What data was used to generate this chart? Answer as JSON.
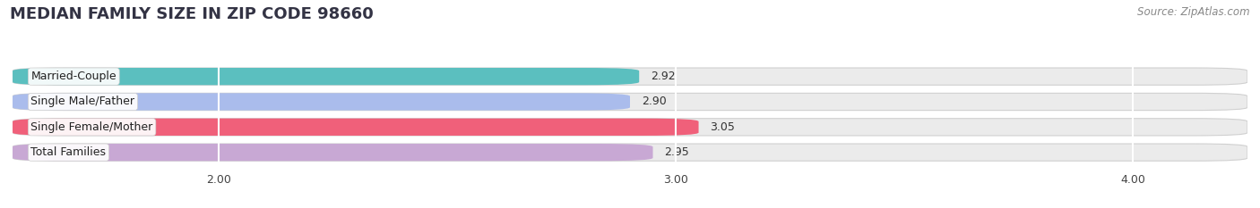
{
  "title": "MEDIAN FAMILY SIZE IN ZIP CODE 98660",
  "source": "Source: ZipAtlas.com",
  "categories": [
    "Married-Couple",
    "Single Male/Father",
    "Single Female/Mother",
    "Total Families"
  ],
  "values": [
    2.92,
    2.9,
    3.05,
    2.95
  ],
  "bar_colors": [
    "#5BBFBF",
    "#AABCEC",
    "#F0607A",
    "#C8A8D4"
  ],
  "xlim_left": 1.55,
  "xlim_right": 4.25,
  "xticks": [
    2.0,
    3.0,
    4.0
  ],
  "xtick_labels": [
    "2.00",
    "3.00",
    "4.00"
  ],
  "background_color": "#ffffff",
  "bar_background_color": "#ebebeb",
  "title_fontsize": 13,
  "label_fontsize": 9,
  "value_fontsize": 9,
  "source_fontsize": 8.5,
  "bar_height": 0.68,
  "rounding_size": 0.12
}
